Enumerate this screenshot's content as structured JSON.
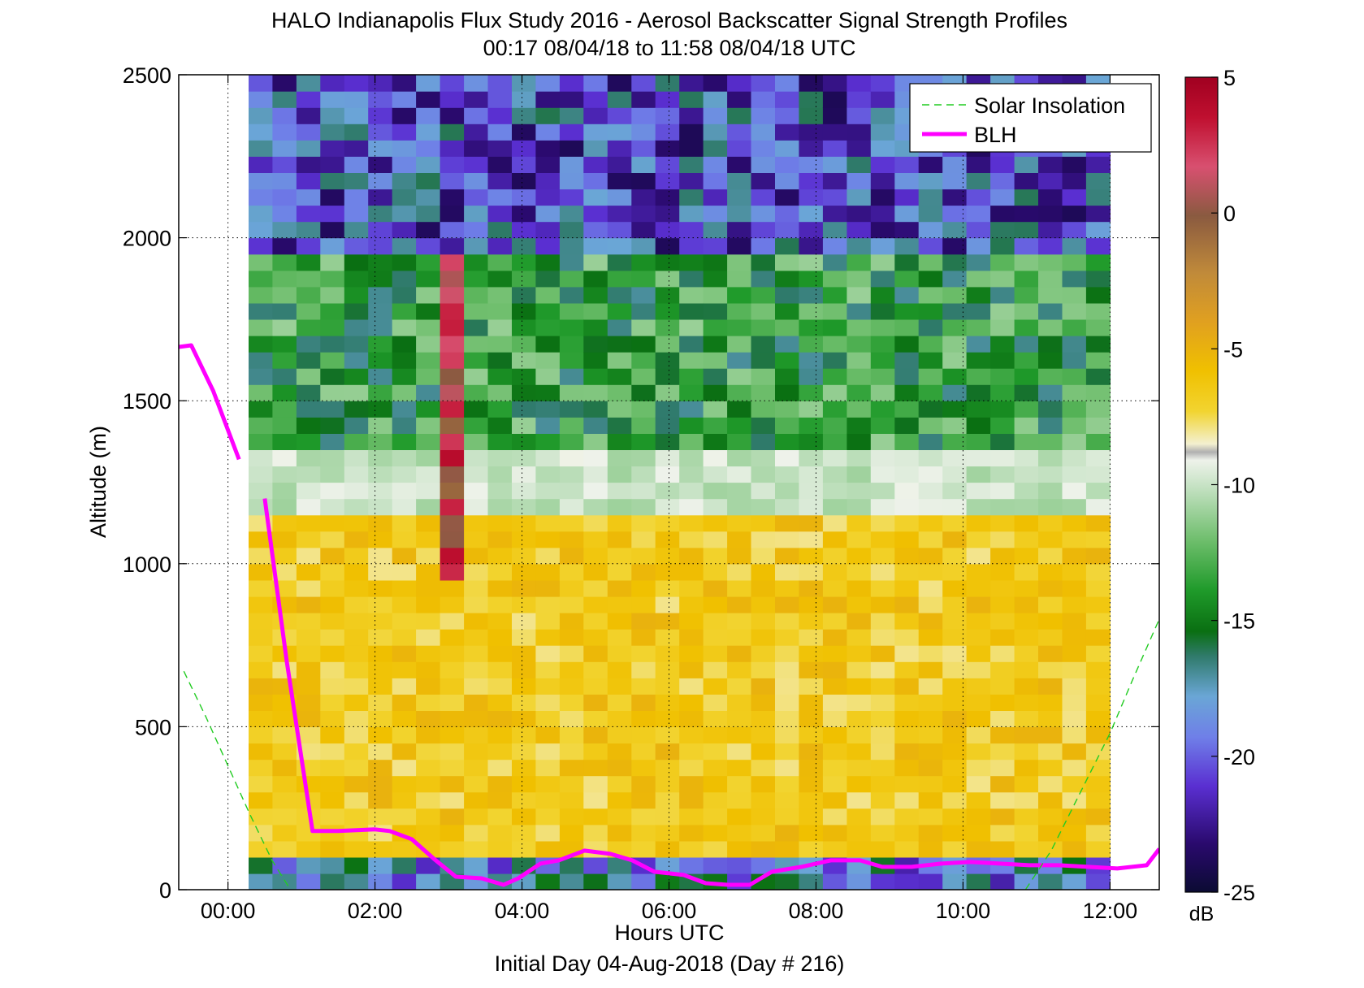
{
  "chart_data": {
    "type": "heatmap",
    "title": "HALO Indianapolis Flux Study 2016 - Aerosol Backscatter Signal Strength Profiles",
    "subtitle": "00:17 08/04/18 to 11:58 08/04/18  UTC",
    "xlabel": "Hours UTC",
    "xlabel2": "Initial Day 04-Aug-2018 (Day # 216)",
    "ylabel": "Altitude (m)",
    "xlim": [
      -0.67,
      12.67
    ],
    "ylim": [
      0,
      2500
    ],
    "x_tick_values": [
      0,
      2,
      4,
      6,
      8,
      10,
      12
    ],
    "x_tick_labels": [
      "00:00",
      "02:00",
      "04:00",
      "06:00",
      "08:00",
      "10:00",
      "12:00"
    ],
    "y_tick_values": [
      0,
      500,
      1000,
      1500,
      2000,
      2500
    ],
    "y_tick_labels": [
      "0",
      "500",
      "1000",
      "1500",
      "2000",
      "2500"
    ],
    "grid": "dotted",
    "colorbar": {
      "label": "dB",
      "range": [
        -25,
        5
      ],
      "tick_values": [
        5,
        0,
        -5,
        -10,
        -15,
        -20,
        -25
      ],
      "tick_labels": [
        "5",
        "0",
        "-5",
        "-10",
        "-15",
        "-20",
        "-25"
      ]
    },
    "legend": {
      "placement": "top-right",
      "entries": [
        {
          "name": "Solar Insolation",
          "color": "#22cc22",
          "style": "dashed"
        },
        {
          "name": "BLH",
          "color": "#ff00ff",
          "style": "solid"
        }
      ]
    },
    "heatmap_summary": {
      "x_range_hours": [
        0.28,
        12.0
      ],
      "altitude_range_m": [
        0,
        2500
      ],
      "bands": [
        {
          "altitude_m": [
            0,
            90
          ],
          "signal_db": [
            -22,
            -15
          ],
          "note": "lowest gate, mixed green/purple"
        },
        {
          "altitude_m": [
            90,
            1150
          ],
          "signal_db": [
            -8,
            -5
          ],
          "note": "aerosol layer, orange/yellow"
        },
        {
          "altitude_m": [
            1150,
            1350
          ],
          "signal_db": [
            -11,
            -9
          ],
          "note": "transition, pale/grey"
        },
        {
          "altitude_m": [
            1350,
            1950
          ],
          "signal_db": [
            -17,
            -11
          ],
          "note": "greens"
        },
        {
          "altitude_m": [
            1950,
            2500
          ],
          "signal_db": [
            -24,
            -16
          ],
          "note": "blues/purples (noise)"
        }
      ],
      "plume_column": {
        "hours": [
          3.0,
          3.3
        ],
        "altitude_m": [
          950,
          1950
        ],
        "signal_db": [
          -1,
          4
        ]
      }
    },
    "series": [
      {
        "name": "BLH",
        "x": [
          -0.67,
          -0.5,
          -0.2,
          0.15,
          null,
          0.5,
          0.8,
          1.15,
          1.5,
          2.0,
          2.2,
          2.5,
          2.8,
          3.1,
          3.45,
          3.75,
          3.95,
          4.25,
          4.5,
          4.85,
          5.2,
          5.5,
          5.8,
          6.2,
          6.5,
          6.8,
          7.1,
          7.4,
          7.8,
          8.2,
          8.6,
          8.9,
          9.3,
          9.7,
          10.1,
          10.5,
          10.9,
          11.3,
          11.7,
          12.1,
          12.5,
          12.67
        ],
        "y": [
          1665,
          1670,
          1530,
          1320,
          null,
          1200,
          700,
          180,
          180,
          185,
          180,
          155,
          95,
          40,
          35,
          15,
          35,
          80,
          90,
          120,
          110,
          90,
          55,
          45,
          20,
          15,
          15,
          55,
          70,
          90,
          90,
          70,
          70,
          80,
          85,
          80,
          75,
          75,
          70,
          65,
          75,
          125
        ]
      },
      {
        "name": "Solar Insolation",
        "x": [
          -0.6,
          -0.3,
          0.0,
          0.3,
          0.6,
          0.85,
          null,
          10.85,
          11.2,
          11.6,
          12.0,
          12.3,
          12.67
        ],
        "y": [
          670,
          530,
          380,
          230,
          90,
          0,
          null,
          0,
          120,
          300,
          480,
          640,
          830
        ]
      }
    ]
  }
}
